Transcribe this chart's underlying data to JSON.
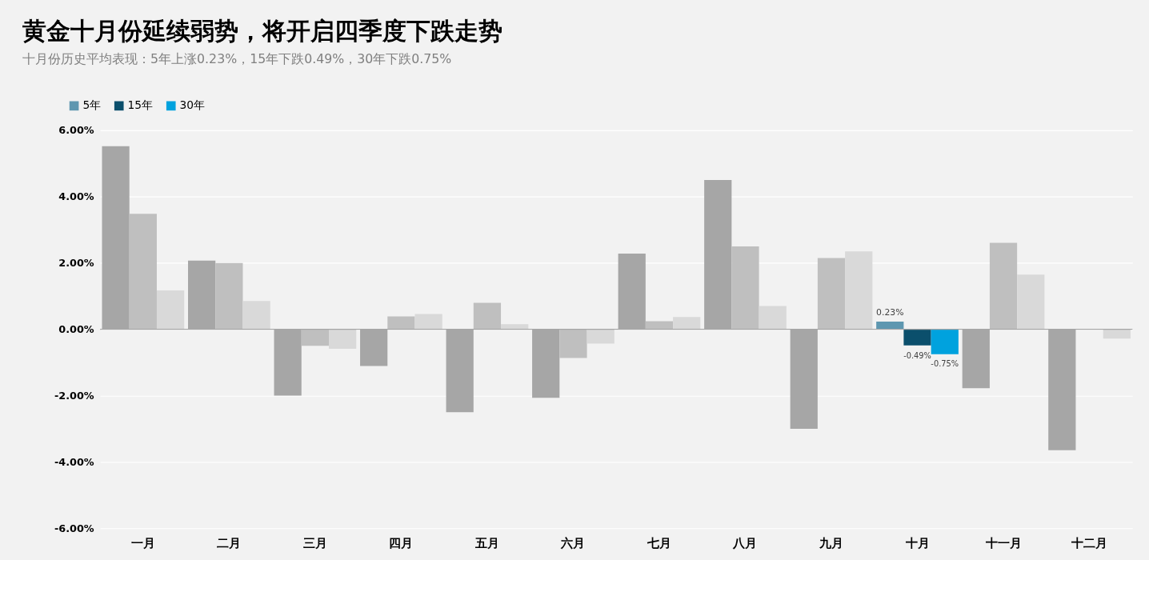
{
  "chart_data": {
    "type": "bar",
    "title": "黄金十月份延续弱势，将开启四季度下跌走势",
    "subtitle": "十月份历史平均表现：5年上涨0.23%，15年下跌0.49%，30年下跌0.75%",
    "categories": [
      "一月",
      "二月",
      "三月",
      "四月",
      "五月",
      "六月",
      "七月",
      "八月",
      "九月",
      "十月",
      "十一月",
      "十二月"
    ],
    "series": [
      {
        "name": "5年",
        "color": "#5e97b0",
        "colors": [
          "#a6a6a6",
          "#a6a6a6",
          "#a6a6a6",
          "#a6a6a6",
          "#a6a6a6",
          "#a6a6a6",
          "#a6a6a6",
          "#a6a6a6",
          "#a6a6a6",
          "#5e97b0",
          "#a6a6a6",
          "#a6a6a6"
        ],
        "values": [
          5.52,
          2.07,
          -2.0,
          -1.11,
          -2.5,
          -2.07,
          2.28,
          4.5,
          -3.0,
          0.23,
          -1.78,
          -3.65
        ],
        "value_labels": [
          null,
          null,
          null,
          null,
          null,
          null,
          null,
          null,
          null,
          "0.23%",
          null,
          null
        ]
      },
      {
        "name": "15年",
        "color": "#0b4f6c",
        "colors": [
          "#bfbfbf",
          "#bfbfbf",
          "#bfbfbf",
          "#bfbfbf",
          "#bfbfbf",
          "#bfbfbf",
          "#bfbfbf",
          "#bfbfbf",
          "#bfbfbf",
          "#0b4f6c",
          "#bfbfbf",
          "#bfbfbf"
        ],
        "values": [
          3.48,
          2.0,
          -0.5,
          0.39,
          0.8,
          -0.87,
          0.24,
          2.5,
          2.15,
          -0.49,
          2.61,
          null
        ],
        "value_labels": [
          null,
          null,
          null,
          null,
          null,
          null,
          null,
          null,
          null,
          "-0.49%",
          null,
          null
        ]
      },
      {
        "name": "30年",
        "color": "#00a2de",
        "colors": [
          "#d9d9d9",
          "#d9d9d9",
          "#d9d9d9",
          "#d9d9d9",
          "#d9d9d9",
          "#d9d9d9",
          "#d9d9d9",
          "#d9d9d9",
          "#d9d9d9",
          "#00a2de",
          "#d9d9d9",
          "#d9d9d9"
        ],
        "values": [
          1.17,
          0.85,
          -0.59,
          0.46,
          0.15,
          -0.43,
          0.37,
          0.7,
          2.35,
          -0.75,
          1.65,
          -0.28
        ],
        "value_labels": [
          null,
          null,
          null,
          null,
          null,
          null,
          null,
          null,
          null,
          "-0.75%",
          null,
          null
        ]
      }
    ],
    "ylim": [
      -6,
      6
    ],
    "yticks": [
      {
        "value": -6,
        "label": "-6.00%"
      },
      {
        "value": -4,
        "label": "-4.00%"
      },
      {
        "value": -2,
        "label": "-2.00%"
      },
      {
        "value": 0,
        "label": "0.00%"
      },
      {
        "value": 2,
        "label": "2.00%"
      },
      {
        "value": 4,
        "label": "4.00%"
      },
      {
        "value": 6,
        "label": "6.00%"
      }
    ],
    "grid": "y",
    "legend": "top left"
  }
}
